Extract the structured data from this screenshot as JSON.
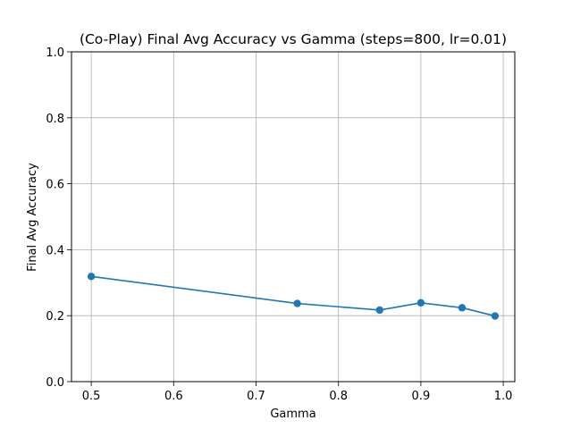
{
  "chart_data": {
    "type": "line",
    "title": "(Co-Play) Final Avg Accuracy vs Gamma (steps=800, lr=0.01)",
    "xlabel": "Gamma",
    "ylabel": "Final Avg Accuracy",
    "xlim": [
      0.476,
      1.014
    ],
    "ylim": [
      0.0,
      1.0
    ],
    "xticks": [
      0.5,
      0.6,
      0.7,
      0.8,
      0.9,
      1.0
    ],
    "xtick_labels": [
      "0.5",
      "0.6",
      "0.7",
      "0.8",
      "0.9",
      "1.0"
    ],
    "yticks": [
      0.0,
      0.2,
      0.4,
      0.6,
      0.8,
      1.0
    ],
    "ytick_labels": [
      "0.0",
      "0.2",
      "0.4",
      "0.6",
      "0.8",
      "1.0"
    ],
    "grid": true,
    "series": [
      {
        "color": "#1f77b4",
        "marker": "circle",
        "x": [
          0.5,
          0.75,
          0.85,
          0.9,
          0.95,
          0.99
        ],
        "y": [
          0.319,
          0.237,
          0.217,
          0.239,
          0.224,
          0.199
        ]
      }
    ]
  }
}
